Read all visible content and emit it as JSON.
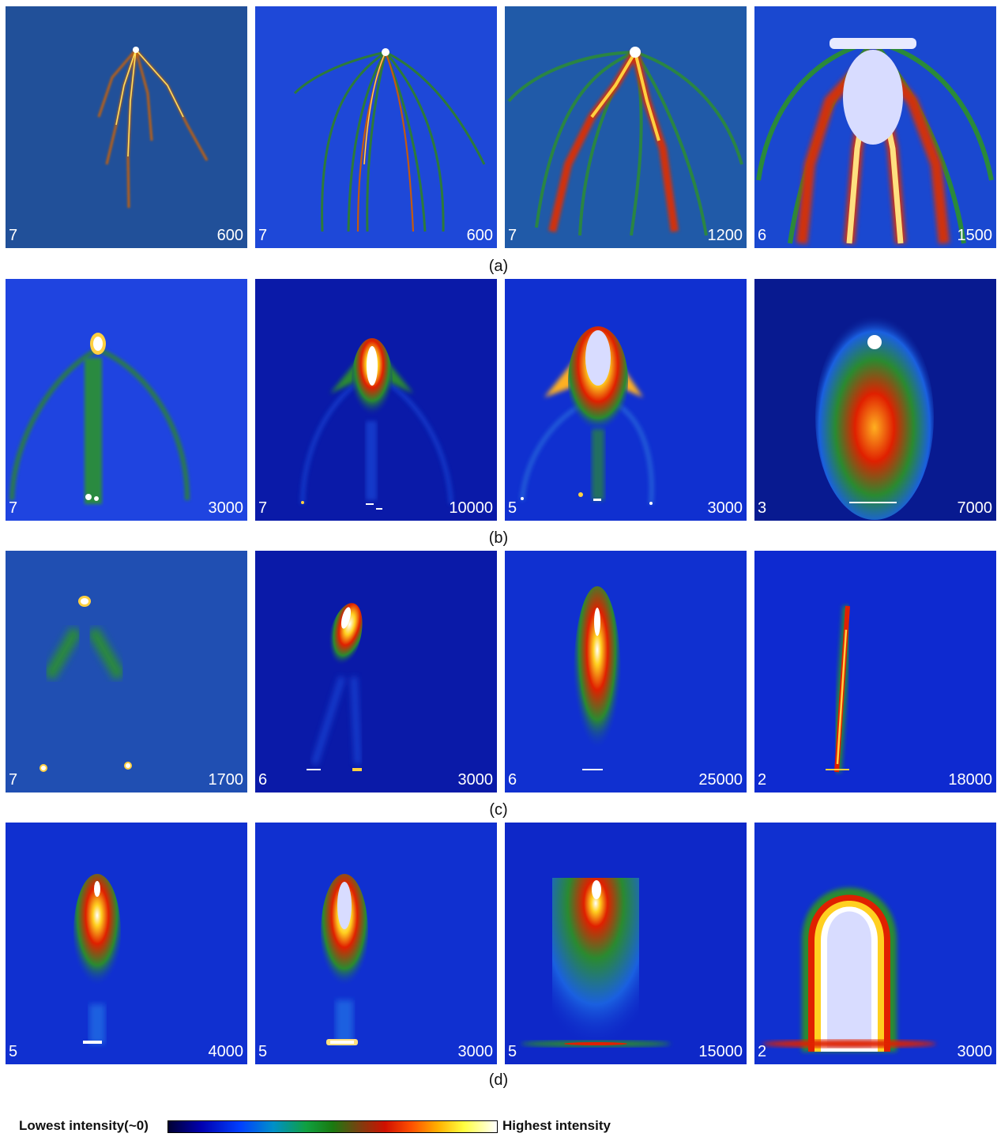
{
  "rows": [
    {
      "caption": "(a)",
      "panels": [
        {
          "left": "7",
          "right": "600"
        },
        {
          "left": "7",
          "right": "600"
        },
        {
          "left": "7",
          "right": "1200"
        },
        {
          "left": "6",
          "right": "1500"
        }
      ]
    },
    {
      "caption": "(b)",
      "panels": [
        {
          "left": "7",
          "right": "3000"
        },
        {
          "left": "7",
          "right": "10000"
        },
        {
          "left": "5",
          "right": "3000"
        },
        {
          "left": "3",
          "right": "7000"
        }
      ]
    },
    {
      "caption": "(c)",
      "panels": [
        {
          "left": "7",
          "right": "1700"
        },
        {
          "left": "6",
          "right": "3000"
        },
        {
          "left": "6",
          "right": "25000"
        },
        {
          "left": "2",
          "right": "18000"
        }
      ]
    },
    {
      "caption": "(d)",
      "panels": [
        {
          "left": "5",
          "right": "4000"
        },
        {
          "left": "5",
          "right": "3000"
        },
        {
          "left": "5",
          "right": "15000"
        },
        {
          "left": "2",
          "right": "3000"
        }
      ]
    }
  ],
  "colorbar": {
    "low_label": "Lowest intensity(~0)",
    "high_label": "Highest intensity"
  }
}
